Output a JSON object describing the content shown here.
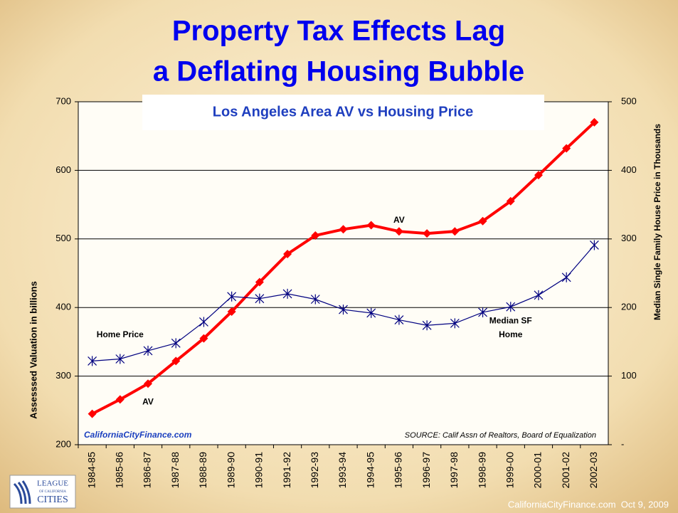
{
  "slide": {
    "title_lines": [
      "Property Tax Effects Lag",
      "a Deflating Housing Bubble"
    ],
    "footer": "CaliforniaCityFinance.com  Oct 9, 2009",
    "logo": [
      "LEAGUE",
      "OF CALIFORNIA",
      "CITIES"
    ]
  },
  "chart_data": {
    "type": "line",
    "title": "Los Angeles Area AV vs Housing Price",
    "ylabel": "Assesssed Valuation in billions",
    "y2label": "Median Single Family House Price in Thousands",
    "source": "SOURCE: Calif Assn of Realtors, Board of Equalization",
    "credit": "CaliforniaCityFinance.com",
    "categories": [
      "1984-85",
      "1985-86",
      "1986-87",
      "1987-88",
      "1988-89",
      "1989-90",
      "1990-91",
      "1991-92",
      "1992-93",
      "1993-94",
      "1994-95",
      "1995-96",
      "1996-97",
      "1997-98",
      "1998-99",
      "1999-00",
      "2000-01",
      "2001-02",
      "2002-03"
    ],
    "series": [
      {
        "name": "AV",
        "color": "#ff0000",
        "axis": "y",
        "values": [
          245,
          266,
          289,
          322,
          355,
          394,
          437,
          478,
          505,
          514,
          520,
          511,
          508,
          511,
          526,
          555,
          593,
          632,
          670
        ]
      },
      {
        "name": "Median SF Home",
        "color": "#000080",
        "axis": "y2",
        "values": [
          122,
          125,
          137,
          148,
          179,
          216,
          213,
          220,
          212,
          197,
          192,
          182,
          174,
          177,
          193,
          201,
          218,
          244,
          291
        ]
      }
    ],
    "annotations": [
      {
        "text": "Home Price",
        "category": 1,
        "value": 160,
        "axis": "y2"
      },
      {
        "text": "AV",
        "category": 2,
        "value": 262,
        "axis": "y"
      },
      {
        "text": "AV",
        "category": 11,
        "value": 527,
        "axis": "y"
      },
      {
        "text": "Median SF",
        "category": 15,
        "value": 180,
        "axis": "y2"
      },
      {
        "text": "Home",
        "category": 15,
        "value": 160,
        "axis": "y2"
      }
    ],
    "ylim": [
      200,
      700
    ],
    "yticks": [
      200,
      300,
      400,
      500,
      600,
      700
    ],
    "y2lim": [
      0,
      500
    ],
    "y2ticks": [
      {
        "value": 0,
        "label": "-"
      },
      100,
      200,
      300,
      400,
      500
    ],
    "grid": true
  }
}
